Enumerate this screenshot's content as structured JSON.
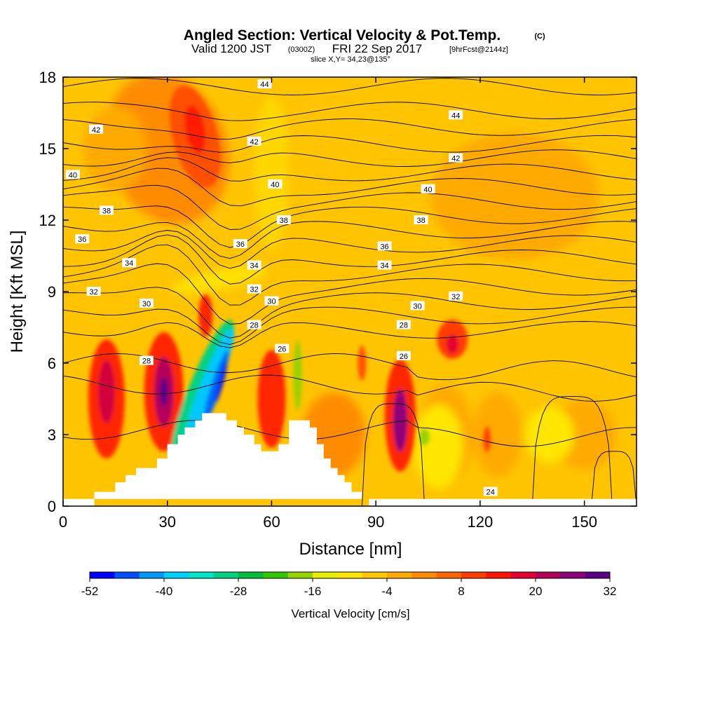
{
  "header": {
    "title": "Angled Section: Vertical Velocity & Pot.Temp.",
    "copyright": "(C)",
    "valid_prefix": "Valid 1200 JST",
    "valid_utc": "(0300Z)",
    "valid_date": "FRI 22 Sep 2017",
    "forecast": "[9hrFcst@2144z]",
    "slice": "slice X,Y= 34,23@135°"
  },
  "chart_data": {
    "type": "heatmap",
    "title": "Angled Section: Vertical Velocity & Pot.Temp.",
    "xlabel": "Distance [nm]",
    "ylabel": "Height [Kft MSL]",
    "xlim": [
      0,
      165
    ],
    "ylim": [
      0,
      18
    ],
    "x_ticks": [
      0,
      30,
      60,
      90,
      120,
      150
    ],
    "y_ticks": [
      0,
      3,
      6,
      9,
      12,
      15,
      18
    ],
    "colorbar": {
      "label": "Vertical Velocity [cm/s]",
      "min": -52,
      "max": 32,
      "tick_values": [
        -52,
        -40,
        -28,
        -16,
        -4,
        8,
        20,
        32
      ],
      "colors": [
        "#0000ff",
        "#0050ff",
        "#0096ff",
        "#00d2ff",
        "#00e6c8",
        "#00d282",
        "#00be3c",
        "#32c800",
        "#96d200",
        "#e6f000",
        "#ffe600",
        "#ffc800",
        "#ffaa00",
        "#ff8c00",
        "#ff6400",
        "#ff3c00",
        "#ff1400",
        "#e6002d",
        "#b4005a",
        "#8c0078",
        "#5a0087"
      ]
    },
    "theta_contour_labels": [
      {
        "x": 2.8,
        "y": 13.9,
        "text": "40"
      },
      {
        "x": 5.5,
        "y": 11.2,
        "text": "36"
      },
      {
        "x": 8.8,
        "y": 9.0,
        "text": "32"
      },
      {
        "x": 9.5,
        "y": 15.8,
        "text": "42"
      },
      {
        "x": 12.5,
        "y": 12.4,
        "text": "38"
      },
      {
        "x": 19.0,
        "y": 10.2,
        "text": "34"
      },
      {
        "x": 24.0,
        "y": 8.5,
        "text": "30"
      },
      {
        "x": 24.0,
        "y": 6.1,
        "text": "28"
      },
      {
        "x": 58.0,
        "y": 17.7,
        "text": "44"
      },
      {
        "x": 55.0,
        "y": 15.3,
        "text": "42"
      },
      {
        "x": 61.0,
        "y": 13.5,
        "text": "40"
      },
      {
        "x": 63.5,
        "y": 12.0,
        "text": "38"
      },
      {
        "x": 51.0,
        "y": 11.0,
        "text": "36"
      },
      {
        "x": 55.0,
        "y": 10.1,
        "text": "34"
      },
      {
        "x": 55.0,
        "y": 9.1,
        "text": "32"
      },
      {
        "x": 60.0,
        "y": 8.6,
        "text": "30"
      },
      {
        "x": 55.0,
        "y": 7.6,
        "text": "28"
      },
      {
        "x": 63.0,
        "y": 6.6,
        "text": "26"
      },
      {
        "x": 113.0,
        "y": 16.4,
        "text": "44"
      },
      {
        "x": 113.0,
        "y": 14.6,
        "text": "42"
      },
      {
        "x": 105.0,
        "y": 13.3,
        "text": "40"
      },
      {
        "x": 103.0,
        "y": 12.0,
        "text": "38"
      },
      {
        "x": 92.5,
        "y": 10.9,
        "text": "36"
      },
      {
        "x": 92.5,
        "y": 10.1,
        "text": "34"
      },
      {
        "x": 113.0,
        "y": 8.8,
        "text": "32"
      },
      {
        "x": 102.0,
        "y": 8.4,
        "text": "30"
      },
      {
        "x": 98.0,
        "y": 7.6,
        "text": "28"
      },
      {
        "x": 98.0,
        "y": 6.3,
        "text": "26"
      },
      {
        "x": 123.0,
        "y": 0.6,
        "text": "24"
      }
    ],
    "terrain": [
      [
        0,
        0
      ],
      [
        9,
        0
      ],
      [
        9,
        0.6
      ],
      [
        15,
        0.6
      ],
      [
        15,
        1.0
      ],
      [
        18,
        1.0
      ],
      [
        18,
        1.3
      ],
      [
        21,
        1.3
      ],
      [
        21,
        1.6
      ],
      [
        27,
        1.6
      ],
      [
        27,
        2.0
      ],
      [
        30,
        2.0
      ],
      [
        30,
        2.6
      ],
      [
        33,
        2.6
      ],
      [
        33,
        3.0
      ],
      [
        35,
        3.0
      ],
      [
        35,
        3.3
      ],
      [
        38,
        3.3
      ],
      [
        38,
        3.6
      ],
      [
        40,
        3.6
      ],
      [
        40,
        3.9
      ],
      [
        47,
        3.9
      ],
      [
        47,
        3.6
      ],
      [
        50,
        3.6
      ],
      [
        50,
        3.3
      ],
      [
        52,
        3.3
      ],
      [
        52,
        3.0
      ],
      [
        55,
        3.0
      ],
      [
        55,
        2.6
      ],
      [
        57,
        2.6
      ],
      [
        57,
        2.3
      ],
      [
        62,
        2.3
      ],
      [
        62,
        2.6
      ],
      [
        65,
        2.6
      ],
      [
        65,
        3.6
      ],
      [
        71,
        3.6
      ],
      [
        71,
        3.3
      ],
      [
        73,
        3.3
      ],
      [
        73,
        2.6
      ],
      [
        75,
        2.6
      ],
      [
        75,
        2.0
      ],
      [
        77,
        2.0
      ],
      [
        77,
        1.6
      ],
      [
        79,
        1.6
      ],
      [
        79,
        1.3
      ],
      [
        81,
        1.3
      ],
      [
        81,
        1.0
      ],
      [
        83,
        1.0
      ],
      [
        83,
        0.6
      ],
      [
        86,
        0.6
      ],
      [
        86,
        0.3
      ],
      [
        88,
        0.3
      ],
      [
        88,
        0
      ],
      [
        165,
        0
      ],
      [
        165,
        0.3
      ],
      [
        0,
        0.3
      ]
    ]
  }
}
